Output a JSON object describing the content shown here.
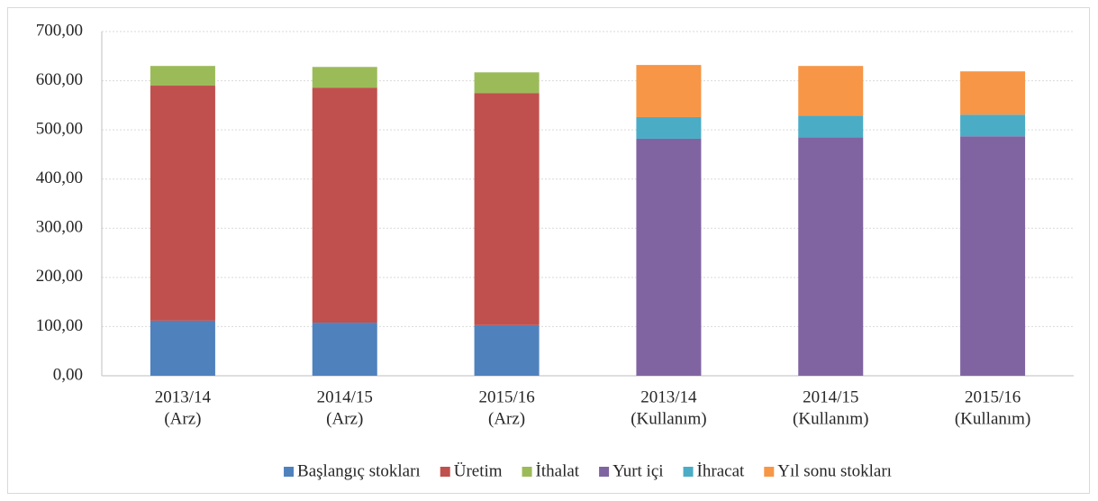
{
  "chart_data": {
    "type": "stacked_bar",
    "categories": [
      [
        "2013/14",
        "(Arz)"
      ],
      [
        "2014/15",
        "(Arz)"
      ],
      [
        "2015/16",
        "(Arz)"
      ],
      [
        "2013/14",
        "(Kullanım)"
      ],
      [
        "2014/15",
        "(Kullanım)"
      ],
      [
        "2015/16",
        "(Kullanım)"
      ]
    ],
    "series": [
      {
        "name": "Başlangıç stokları",
        "color": "#4f81bd",
        "values": [
          112,
          108,
          103,
          null,
          null,
          null
        ]
      },
      {
        "name": "Üretim",
        "color": "#c0504d",
        "values": [
          478,
          478,
          472,
          null,
          null,
          null
        ]
      },
      {
        "name": "İthalat",
        "color": "#9bbb59",
        "values": [
          40,
          42,
          42,
          null,
          null,
          null
        ]
      },
      {
        "name": "Yurt içi",
        "color": "#8064a2",
        "values": [
          null,
          null,
          null,
          482,
          485,
          487
        ]
      },
      {
        "name": "İhracat",
        "color": "#4bacc6",
        "values": [
          null,
          null,
          null,
          44,
          44,
          44
        ]
      },
      {
        "name": "Yıl sonu stokları",
        "color": "#f79646",
        "values": [
          null,
          null,
          null,
          106,
          101,
          88
        ]
      }
    ],
    "ylim": [
      0,
      700
    ],
    "yticks": [
      {
        "value": 0,
        "label": "0,00"
      },
      {
        "value": 100,
        "label": "100,00"
      },
      {
        "value": 200,
        "label": "200,00"
      },
      {
        "value": 300,
        "label": "300,00"
      },
      {
        "value": 400,
        "label": "400,00"
      },
      {
        "value": 500,
        "label": "500,00"
      },
      {
        "value": 600,
        "label": "600,00"
      },
      {
        "value": 700,
        "label": "700,00"
      }
    ],
    "grid": true,
    "legend": "bottom"
  }
}
